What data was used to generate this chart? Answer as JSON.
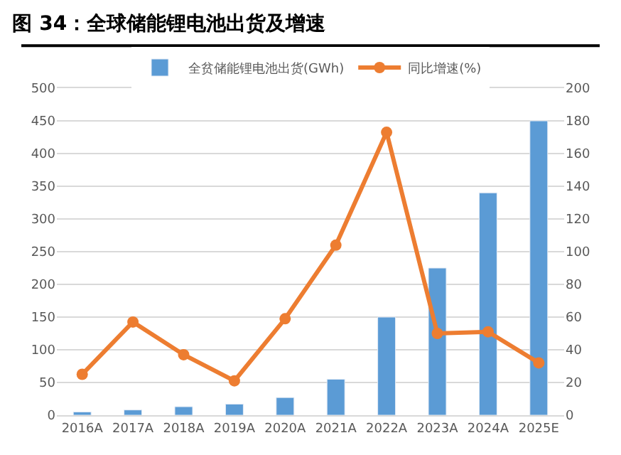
{
  "chart_data": {
    "type": "bar",
    "title": "图 34：全球储能锂电池出货及增速",
    "categories": [
      "2016A",
      "2017A",
      "2018A",
      "2019A",
      "2020A",
      "2021A",
      "2022A",
      "2023A",
      "2024A",
      "2025E"
    ],
    "series": [
      {
        "name": "全贫储能锂电池出货(GWh)",
        "color": "#5b9bd5",
        "values": [
          5,
          8,
          13,
          17,
          27,
          55,
          150,
          225,
          340,
          450
        ]
      },
      {
        "name": "同比增速(%)",
        "type": "line",
        "axis": "y2",
        "color": "#ed7d31",
        "marker": "circle",
        "values": [
          25,
          57,
          37,
          21,
          59,
          104,
          173,
          50,
          51,
          32
        ]
      }
    ],
    "ylim": [
      0,
      500
    ],
    "yticks": [
      0,
      50,
      100,
      150,
      200,
      250,
      300,
      350,
      400,
      450,
      500
    ],
    "y2lim": [
      0,
      200
    ],
    "y2ticks": [
      0,
      20,
      40,
      60,
      80,
      100,
      120,
      140,
      160,
      180,
      200
    ],
    "grid": "y",
    "legend": "top"
  }
}
